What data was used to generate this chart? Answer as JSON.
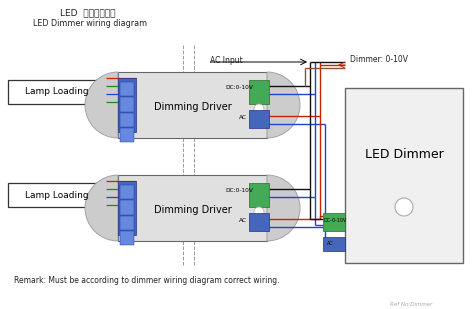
{
  "title_chinese": "LED  调光器接线图",
  "title_english": "LED Dimmer wiring diagram",
  "remark": "Remark: Must be according to dimmer wiring diagram correct wiring.",
  "ref": "Ref No:Dimmer",
  "bg_color": "#ffffff",
  "wire_red": "#cc2200",
  "wire_blue": "#2244cc",
  "wire_green": "#228822",
  "wire_black": "#111111",
  "wire_brown": "#885533",
  "conn_green_ec": "#336633",
  "conn_green_fc": "#44aa55",
  "conn_blue_ec": "#223388",
  "conn_blue_fc": "#4466bb",
  "driver_fc": "#e0e0e0",
  "driver_ec": "#666666",
  "dimmer_fc": "#f0f0f0",
  "dimmer_ec": "#666666",
  "lamp_fc": "#ffffff",
  "lamp_ec": "#333333",
  "endcap_fc": "#cccccc",
  "endcap_ec": "#999999",
  "dash_color": "#999999",
  "text_color": "#222222"
}
